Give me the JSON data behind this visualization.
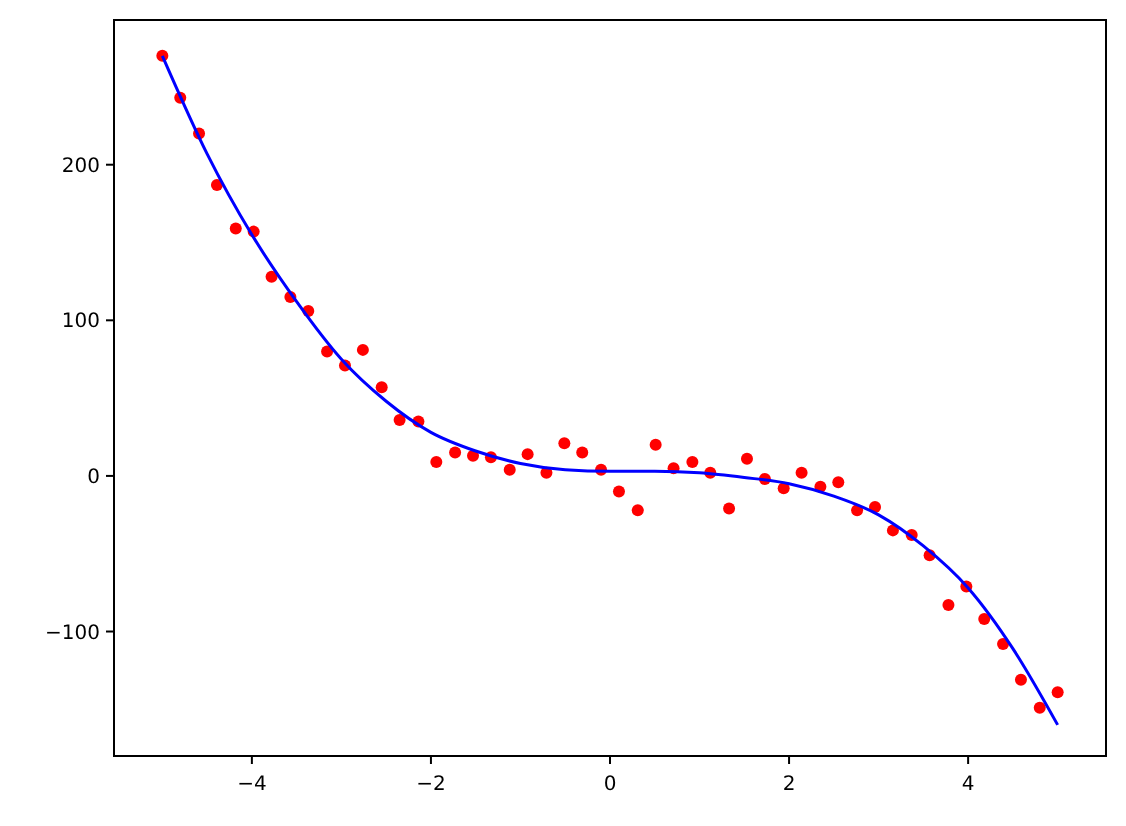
{
  "chart_data": {
    "type": "scatter",
    "xlim": [
      -5.54,
      5.54
    ],
    "ylim": [
      -180,
      293
    ],
    "xticks": [
      {
        "value": -4,
        "label": "−4"
      },
      {
        "value": -2,
        "label": "−2"
      },
      0,
      2,
      4
    ],
    "yticks": [
      {
        "value": -100,
        "label": "−100"
      },
      0,
      100,
      200
    ],
    "grid": false,
    "series": [
      {
        "color": "#ff0000",
        "marker": "circle",
        "x": [
          -5,
          -4.8,
          -4.59,
          -4.39,
          -4.18,
          -3.98,
          -3.78,
          -3.57,
          -3.37,
          -3.16,
          -2.96,
          -2.76,
          -2.55,
          -2.35,
          -2.14,
          -1.94,
          -1.73,
          -1.53,
          -1.33,
          -1.12,
          -0.92,
          -0.71,
          -0.51,
          -0.31,
          -0.1,
          0.1,
          0.31,
          0.51,
          0.71,
          0.92,
          1.12,
          1.33,
          1.53,
          1.73,
          1.94,
          2.14,
          2.35,
          2.55,
          2.76,
          2.96,
          3.16,
          3.37,
          3.57,
          3.78,
          3.98,
          4.18,
          4.39,
          4.59,
          4.8,
          5
        ],
        "values": [
          270,
          243,
          220,
          187,
          159,
          157,
          128,
          115,
          106,
          80,
          71,
          81,
          57,
          36,
          35,
          9,
          15,
          13,
          12,
          4,
          14,
          2,
          21,
          15,
          4,
          -10,
          -22,
          20,
          5,
          9,
          2,
          -21,
          11,
          -2,
          -8,
          2,
          -7,
          -4,
          -22,
          -20,
          -35,
          -38,
          -51,
          -83,
          -71,
          -92,
          -108,
          -131,
          -149,
          -139
        ]
      },
      {
        "type": "line",
        "color": "#0000ff",
        "marker": "none",
        "line_style": "solid",
        "x": [
          -5,
          -4.5,
          -4,
          -3.5,
          -3,
          -2.5,
          -2,
          -1.5,
          -1,
          -0.5,
          0,
          0.5,
          1,
          1.5,
          2,
          2.5,
          3,
          3.5,
          4,
          4.5,
          5
        ],
        "values": [
          270,
          207,
          155,
          112,
          75,
          48,
          28,
          16,
          8,
          4,
          3,
          3,
          2,
          -1,
          -5,
          -13,
          -25,
          -45,
          -72,
          -111,
          -160
        ]
      }
    ]
  }
}
